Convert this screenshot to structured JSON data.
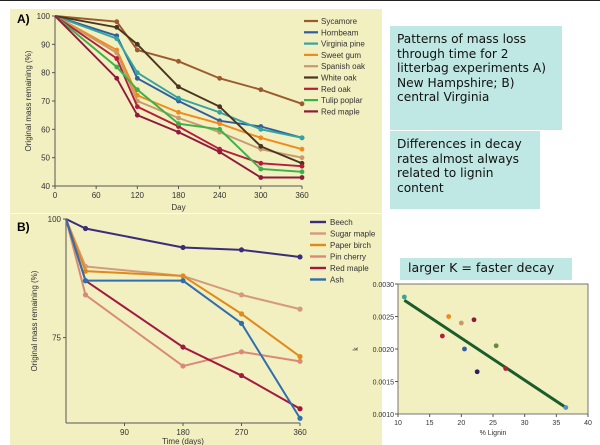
{
  "notes": {
    "patterns": "Patterns of mass loss through time for 2 litterbag experiments A) New Hampshire; B) central Virginia",
    "differences": "Differences in decay rates almost always related to lignin content",
    "k_note": "larger K = faster decay"
  },
  "colors": {
    "panel_bg": "#f2efc0",
    "Sycamore": "#9b5a2d",
    "Hornbeam": "#2f5f9e",
    "Virginia pine": "#34a3a3",
    "Sweet gum": "#f08a1c",
    "Spanish oak": "#c79a6e",
    "White oak": "#4a3520",
    "Red oak": "#b51d3c",
    "Tulip poplar": "#3ab24a",
    "Red maple A": "#8e1a3c",
    "Beech": "#3b2d7a",
    "Sugar maple": "#d49a7a",
    "Paper birch": "#e08a1a",
    "Pin cherry": "#d88a78",
    "Red maple B": "#a31840",
    "Ash": "#2f6fad",
    "regression": "#1a5c2a"
  },
  "chart_data": [
    {
      "type": "line",
      "panel_label": "A)",
      "ylabel": "Original mass remaining (%)",
      "xlabel": "Day",
      "xticks": [
        0,
        60,
        120,
        180,
        240,
        300,
        360
      ],
      "yticks": [
        40,
        50,
        60,
        70,
        80,
        90,
        100
      ],
      "xlim": [
        0,
        360
      ],
      "ylim": [
        40,
        100
      ],
      "grid": false,
      "legend_position": "right",
      "x": [
        0,
        90,
        120,
        180,
        240,
        300,
        360
      ],
      "series": [
        {
          "name": "Sycamore",
          "values": [
            100,
            98,
            88,
            84,
            78,
            74,
            69
          ]
        },
        {
          "name": "Hornbeam",
          "values": [
            100,
            93,
            78,
            70,
            63,
            61,
            57
          ]
        },
        {
          "name": "Virginia pine",
          "values": [
            100,
            92,
            80,
            71,
            66,
            60,
            57
          ]
        },
        {
          "name": "Sweet gum",
          "values": [
            100,
            88,
            72,
            66,
            62,
            57,
            53
          ]
        },
        {
          "name": "Spanish oak",
          "values": [
            100,
            87,
            70,
            64,
            59,
            53,
            50
          ]
        },
        {
          "name": "White oak",
          "values": [
            100,
            96,
            90,
            75,
            68,
            54,
            48
          ]
        },
        {
          "name": "Red oak",
          "values": [
            100,
            85,
            68,
            61,
            53,
            48,
            47
          ]
        },
        {
          "name": "Tulip poplar",
          "values": [
            100,
            82,
            74,
            62,
            60,
            46,
            45
          ]
        },
        {
          "name": "Red maple",
          "values": [
            100,
            78,
            65,
            59,
            52,
            43,
            43
          ]
        }
      ]
    },
    {
      "type": "line",
      "panel_label": "B)",
      "ylabel": "Original mass remaining (%)",
      "xlabel": "Time (days)",
      "xticks": [
        90,
        180,
        270,
        360
      ],
      "yticks": [
        75,
        100
      ],
      "xlim": [
        0,
        360
      ],
      "ylim": [
        57,
        100
      ],
      "grid": false,
      "legend_position": "right",
      "x": [
        0,
        30,
        180,
        270,
        360
      ],
      "series": [
        {
          "name": "Beech",
          "values": [
            100,
            98,
            94,
            93.5,
            92
          ]
        },
        {
          "name": "Sugar maple",
          "values": [
            100,
            90,
            88,
            84,
            81
          ]
        },
        {
          "name": "Paper birch",
          "values": [
            100,
            89,
            88,
            80,
            71
          ]
        },
        {
          "name": "Pin cherry",
          "values": [
            100,
            84,
            69,
            72,
            70
          ]
        },
        {
          "name": "Red maple",
          "values": [
            100,
            87,
            73,
            67,
            60
          ]
        },
        {
          "name": "Ash",
          "values": [
            100,
            87,
            87,
            78,
            58
          ]
        }
      ]
    },
    {
      "type": "scatter",
      "xlabel": "% Lignin",
      "ylabel": "k",
      "xticks": [
        10,
        15,
        20,
        25,
        30,
        35,
        40
      ],
      "yticks": [
        0.001,
        0.0015,
        0.002,
        0.0025,
        0.003
      ],
      "xlim": [
        10,
        40
      ],
      "ylim": [
        0.001,
        0.003
      ],
      "points": [
        {
          "x": 11,
          "y": 0.0028,
          "color": "#34a3a3"
        },
        {
          "x": 17,
          "y": 0.0022,
          "color": "#b51d3c"
        },
        {
          "x": 18,
          "y": 0.0025,
          "color": "#f08a1c"
        },
        {
          "x": 20,
          "y": 0.0024,
          "color": "#c79a6e"
        },
        {
          "x": 20.5,
          "y": 0.002,
          "color": "#2f5f9e"
        },
        {
          "x": 22,
          "y": 0.00245,
          "color": "#8e1a3c"
        },
        {
          "x": 22.5,
          "y": 0.00165,
          "color": "#2a2060"
        },
        {
          "x": 25.5,
          "y": 0.00205,
          "color": "#6a8a3a"
        },
        {
          "x": 27,
          "y": 0.0017,
          "color": "#b51d3c"
        },
        {
          "x": 36.5,
          "y": 0.0011,
          "color": "#5b8fc7"
        }
      ],
      "regression": {
        "x": [
          11,
          36.5
        ],
        "y": [
          0.00275,
          0.0011
        ]
      }
    }
  ]
}
